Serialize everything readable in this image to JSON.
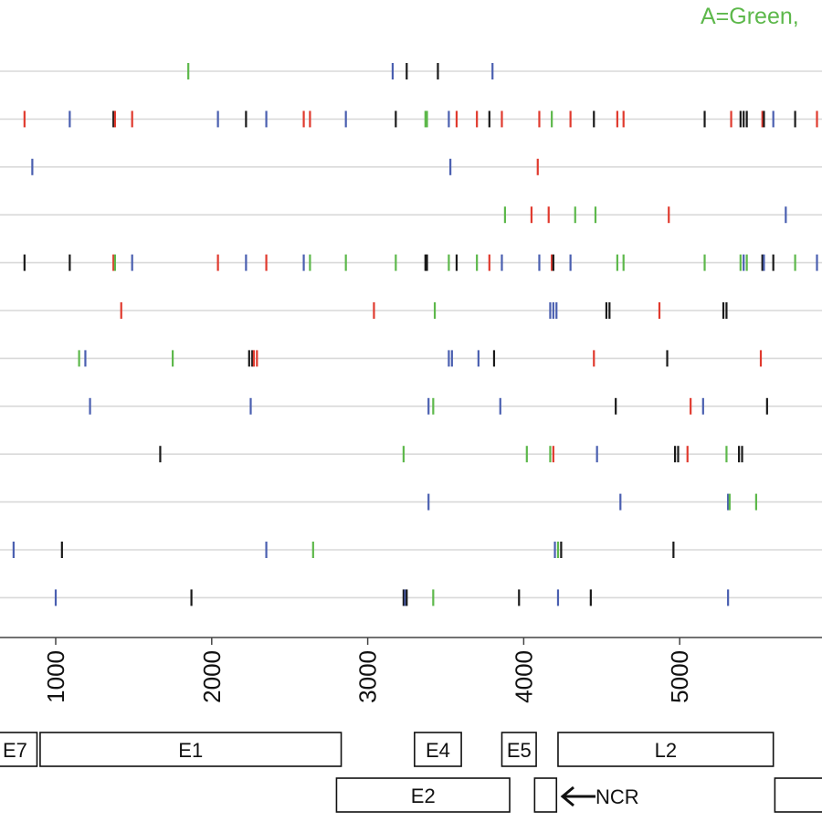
{
  "legend": {
    "text": "A=Green,",
    "color": "#5db84b"
  },
  "colors": {
    "A": "#5db84b",
    "C": "#4a5fb0",
    "G": "#1a1a1a",
    "T": "#e03a2e",
    "track": "#d9d9d9"
  },
  "chart_data": {
    "type": "scatter",
    "xlim": [
      650,
      5900
    ],
    "xticks": [
      1000,
      2000,
      3000,
      4000,
      5000
    ],
    "tick_labels": [
      "1000",
      "2000",
      "3000",
      "4000",
      "5000"
    ],
    "rows": [
      {
        "marks": [
          [
            1850,
            "A"
          ],
          [
            3160,
            "C"
          ],
          [
            3250,
            "G"
          ],
          [
            3450,
            "G"
          ],
          [
            3800,
            "C"
          ]
        ]
      },
      {
        "marks": [
          [
            800,
            "T"
          ],
          [
            1090,
            "C"
          ],
          [
            1370,
            "G"
          ],
          [
            1380,
            "T"
          ],
          [
            1490,
            "T"
          ],
          [
            2040,
            "C"
          ],
          [
            2220,
            "G"
          ],
          [
            2350,
            "C"
          ],
          [
            2590,
            "T"
          ],
          [
            2630,
            "T"
          ],
          [
            2860,
            "C"
          ],
          [
            3180,
            "G"
          ],
          [
            3370,
            "A"
          ],
          [
            3380,
            "A"
          ],
          [
            3520,
            "C"
          ],
          [
            3570,
            "T"
          ],
          [
            3700,
            "T"
          ],
          [
            3780,
            "G"
          ],
          [
            3860,
            "T"
          ],
          [
            4100,
            "T"
          ],
          [
            4180,
            "A"
          ],
          [
            4300,
            "T"
          ],
          [
            4450,
            "G"
          ],
          [
            4600,
            "T"
          ],
          [
            4640,
            "T"
          ],
          [
            5160,
            "G"
          ],
          [
            5330,
            "T"
          ],
          [
            5390,
            "G"
          ],
          [
            5410,
            "G"
          ],
          [
            5430,
            "G"
          ],
          [
            5530,
            "T"
          ],
          [
            5540,
            "G"
          ],
          [
            5600,
            "C"
          ],
          [
            5740,
            "G"
          ],
          [
            5880,
            "T"
          ]
        ]
      },
      {
        "marks": [
          [
            850,
            "C"
          ],
          [
            3530,
            "C"
          ],
          [
            4090,
            "T"
          ]
        ]
      },
      {
        "marks": [
          [
            3880,
            "A"
          ],
          [
            4050,
            "T"
          ],
          [
            4160,
            "T"
          ],
          [
            4330,
            "A"
          ],
          [
            4460,
            "A"
          ],
          [
            4930,
            "T"
          ],
          [
            5680,
            "C"
          ]
        ]
      },
      {
        "marks": [
          [
            800,
            "G"
          ],
          [
            1090,
            "G"
          ],
          [
            1370,
            "T"
          ],
          [
            1380,
            "A"
          ],
          [
            1490,
            "C"
          ],
          [
            2040,
            "T"
          ],
          [
            2220,
            "C"
          ],
          [
            2350,
            "T"
          ],
          [
            2590,
            "C"
          ],
          [
            2630,
            "A"
          ],
          [
            2860,
            "A"
          ],
          [
            3180,
            "A"
          ],
          [
            3370,
            "G"
          ],
          [
            3380,
            "G"
          ],
          [
            3520,
            "A"
          ],
          [
            3570,
            "G"
          ],
          [
            3700,
            "A"
          ],
          [
            3780,
            "T"
          ],
          [
            3860,
            "C"
          ],
          [
            4100,
            "C"
          ],
          [
            4180,
            "T"
          ],
          [
            4190,
            "G"
          ],
          [
            4300,
            "C"
          ],
          [
            4600,
            "A"
          ],
          [
            4640,
            "A"
          ],
          [
            5160,
            "A"
          ],
          [
            5390,
            "A"
          ],
          [
            5410,
            "C"
          ],
          [
            5430,
            "A"
          ],
          [
            5530,
            "G"
          ],
          [
            5540,
            "C"
          ],
          [
            5600,
            "G"
          ],
          [
            5740,
            "A"
          ],
          [
            5880,
            "C"
          ]
        ]
      },
      {
        "marks": [
          [
            1420,
            "T"
          ],
          [
            3040,
            "T"
          ],
          [
            3430,
            "A"
          ],
          [
            4170,
            "C"
          ],
          [
            4190,
            "C"
          ],
          [
            4210,
            "C"
          ],
          [
            4530,
            "G"
          ],
          [
            4550,
            "G"
          ],
          [
            4870,
            "T"
          ],
          [
            5280,
            "G"
          ],
          [
            5300,
            "G"
          ]
        ]
      },
      {
        "marks": [
          [
            1150,
            "A"
          ],
          [
            1190,
            "C"
          ],
          [
            1750,
            "A"
          ],
          [
            2240,
            "G"
          ],
          [
            2260,
            "G"
          ],
          [
            2270,
            "T"
          ],
          [
            2290,
            "T"
          ],
          [
            3520,
            "C"
          ],
          [
            3540,
            "C"
          ],
          [
            3710,
            "C"
          ],
          [
            3810,
            "G"
          ],
          [
            4450,
            "T"
          ],
          [
            4920,
            "G"
          ],
          [
            5520,
            "T"
          ]
        ]
      },
      {
        "marks": [
          [
            1220,
            "C"
          ],
          [
            2250,
            "C"
          ],
          [
            3390,
            "C"
          ],
          [
            3420,
            "A"
          ],
          [
            3850,
            "C"
          ],
          [
            4590,
            "G"
          ],
          [
            5070,
            "T"
          ],
          [
            5150,
            "C"
          ],
          [
            5560,
            "G"
          ]
        ]
      },
      {
        "marks": [
          [
            1670,
            "G"
          ],
          [
            3230,
            "A"
          ],
          [
            4020,
            "A"
          ],
          [
            4170,
            "A"
          ],
          [
            4190,
            "T"
          ],
          [
            4470,
            "C"
          ],
          [
            4970,
            "G"
          ],
          [
            4990,
            "G"
          ],
          [
            5050,
            "T"
          ],
          [
            5300,
            "A"
          ],
          [
            5380,
            "G"
          ],
          [
            5400,
            "G"
          ]
        ]
      },
      {
        "marks": [
          [
            3390,
            "C"
          ],
          [
            4620,
            "C"
          ],
          [
            5310,
            "C"
          ],
          [
            5320,
            "A"
          ],
          [
            5490,
            "A"
          ]
        ]
      },
      {
        "marks": [
          [
            730,
            "C"
          ],
          [
            1040,
            "G"
          ],
          [
            2350,
            "C"
          ],
          [
            2650,
            "A"
          ],
          [
            4200,
            "C"
          ],
          [
            4220,
            "A"
          ],
          [
            4240,
            "G"
          ],
          [
            4960,
            "G"
          ]
        ]
      },
      {
        "marks": [
          [
            1000,
            "C"
          ],
          [
            1870,
            "G"
          ],
          [
            3230,
            "G"
          ],
          [
            3240,
            "C"
          ],
          [
            3250,
            "G"
          ],
          [
            3420,
            "A"
          ],
          [
            3970,
            "G"
          ],
          [
            4220,
            "C"
          ],
          [
            4430,
            "G"
          ],
          [
            5310,
            "C"
          ]
        ]
      }
    ]
  },
  "genes": [
    {
      "label": "E7",
      "start": 580,
      "end": 880,
      "lane": 1
    },
    {
      "label": "E1",
      "start": 900,
      "end": 2830,
      "lane": 1
    },
    {
      "label": "E4",
      "start": 3300,
      "end": 3600,
      "lane": 1
    },
    {
      "label": "E5",
      "start": 3860,
      "end": 4080,
      "lane": 1
    },
    {
      "label": "L2",
      "start": 4220,
      "end": 5600,
      "lane": 1
    },
    {
      "label": "E2",
      "start": 2800,
      "end": 3910,
      "lane": 2
    },
    {
      "label": "",
      "start": 4070,
      "end": 4210,
      "lane": 2
    },
    {
      "label": "",
      "start": 5610,
      "end": 6100,
      "lane": 2
    }
  ],
  "ncr": {
    "label": "NCR"
  }
}
